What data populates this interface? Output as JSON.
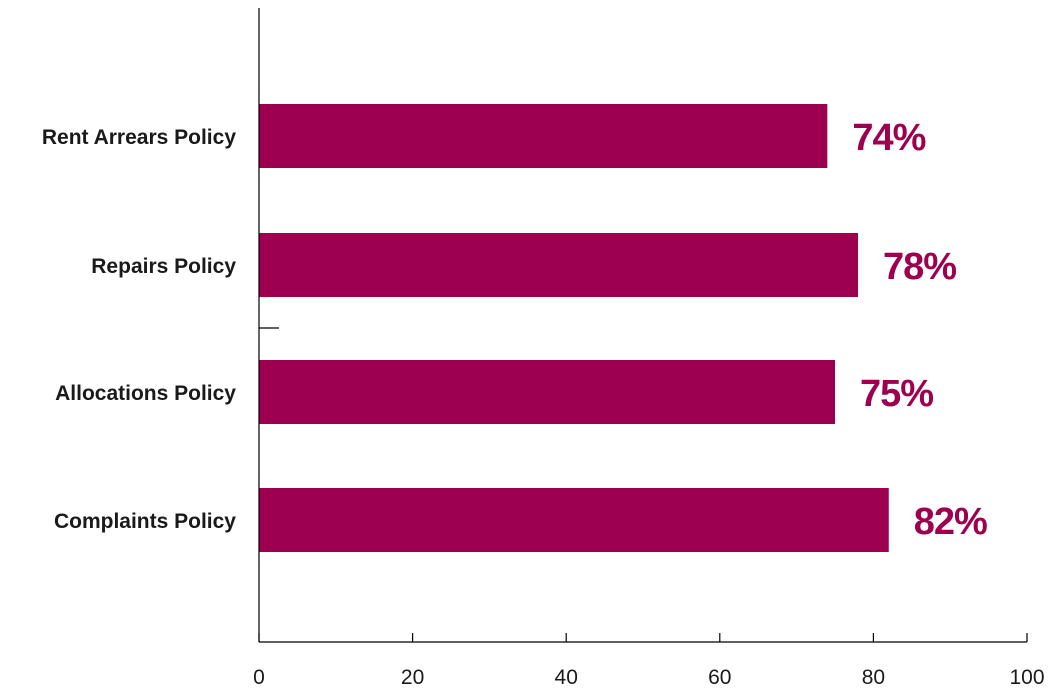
{
  "chart_data": {
    "type": "bar",
    "orientation": "horizontal",
    "categories": [
      "Rent Arrears Policy",
      "Repairs Policy",
      "Allocations Policy",
      "Complaints Policy"
    ],
    "values": [
      74,
      78,
      75,
      82
    ],
    "data_labels": [
      "74%",
      "78%",
      "75%",
      "82%"
    ],
    "xlim": [
      0,
      100
    ],
    "xticks": [
      0,
      20,
      40,
      60,
      80,
      100
    ],
    "xtick_labels": [
      "0",
      "20",
      "40",
      "60",
      "80",
      "100"
    ],
    "grid": false,
    "legend": "none",
    "bar_color": "#9c004f",
    "label_color": "#9c004f"
  }
}
